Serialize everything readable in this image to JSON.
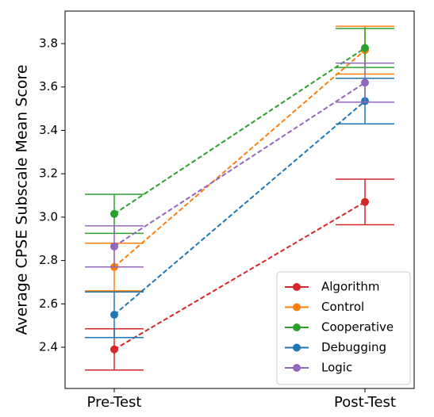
{
  "chart_data": {
    "type": "errorbar-line",
    "y_label": "Average CPSE Subscale Mean Score",
    "categories": [
      "Pre-Test",
      "Post-Test"
    ],
    "ylim": [
      2.21,
      3.95
    ],
    "yticks": [
      2.4,
      2.6,
      2.8,
      {
        "value": 3,
        "label": "3.0"
      },
      3.2,
      3.4,
      3.6,
      3.8
    ],
    "legend_position": "lower right",
    "series": [
      {
        "name": "Algorithm",
        "color": "#d62728",
        "values": [
          2.39,
          3.07
        ],
        "errors": [
          0.095,
          0.105
        ]
      },
      {
        "name": "Control",
        "color": "#ff7f0e",
        "values": [
          2.77,
          3.77
        ],
        "errors": [
          0.11,
          0.11
        ]
      },
      {
        "name": "Cooperative",
        "color": "#2ca02c",
        "values": [
          3.015,
          3.78
        ],
        "errors": [
          0.09,
          0.09
        ]
      },
      {
        "name": "Debugging",
        "color": "#1f77b4",
        "values": [
          2.55,
          3.535
        ],
        "errors": [
          0.105,
          0.105
        ]
      },
      {
        "name": "Logic",
        "color": "#9467bd",
        "values": [
          2.865,
          3.62
        ],
        "errors": [
          0.095,
          0.09
        ]
      }
    ]
  }
}
